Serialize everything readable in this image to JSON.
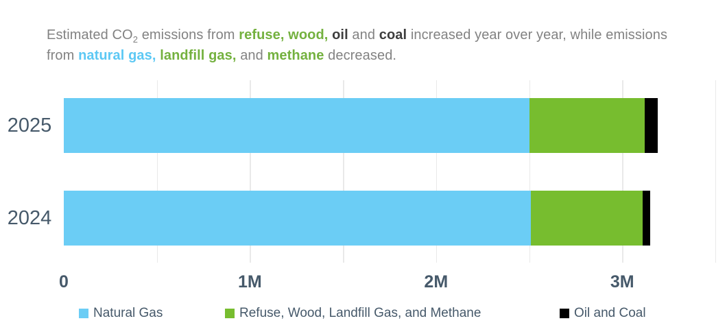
{
  "colors": {
    "blue": "#6bcdf5",
    "green": "#77bd2f",
    "black": "#000000",
    "title_gray": "#828282",
    "title_dark": "#3d3d3d",
    "title_green": "#74b13f",
    "title_blue": "#5cc8f4",
    "axis_text": "#46596a",
    "gridline": "#e9e9e9"
  },
  "title": {
    "lines": [
      [
        {
          "t": "Estimated CO"
        },
        {
          "t": "2",
          "sub": true
        },
        {
          "t": " emissions from "
        },
        {
          "t": "refuse, wood,",
          "c": "green",
          "b": true
        },
        {
          "t": " "
        },
        {
          "t": "oil",
          "c": "dark",
          "b": true
        },
        {
          "t": " and "
        },
        {
          "t": "coal",
          "c": "dark",
          "b": true
        },
        {
          "t": " increased year over year, while emissions"
        }
      ],
      [
        {
          "t": "from "
        },
        {
          "t": "natural gas,",
          "c": "blue",
          "b": true
        },
        {
          "t": " "
        },
        {
          "t": "landfill gas,",
          "c": "green",
          "b": true
        },
        {
          "t": " and "
        },
        {
          "t": "methane",
          "c": "green",
          "b": true
        },
        {
          "t": " decreased."
        }
      ]
    ]
  },
  "chart_data": {
    "type": "bar",
    "orientation": "horizontal",
    "stacked": true,
    "categories": [
      "2025",
      "2024"
    ],
    "series": [
      {
        "name": "Natural Gas",
        "color_key": "blue",
        "values": [
          2.5,
          2.51
        ]
      },
      {
        "name": "Refuse, Wood, Landfill Gas, and Methane",
        "color_key": "green",
        "values": [
          0.62,
          0.6
        ]
      },
      {
        "name": "Oil and Coal",
        "color_key": "black",
        "values": [
          0.07,
          0.04
        ]
      }
    ],
    "totals": [
      3.19,
      3.15
    ],
    "unit": "M",
    "xlim": [
      0,
      3.5
    ],
    "xticks": [
      {
        "v": 0,
        "label": "0"
      },
      {
        "v": 1,
        "label": "1M"
      },
      {
        "v": 2,
        "label": "2M"
      },
      {
        "v": 3,
        "label": "3M"
      }
    ],
    "gridline_step": 0.5,
    "grid": "vertical-only",
    "legend_position": "bottom"
  },
  "legend": {
    "items": [
      {
        "label": "Natural Gas",
        "color_key": "blue"
      },
      {
        "label": "Refuse, Wood, Landfill Gas, and Methane",
        "color_key": "green"
      },
      {
        "label": "Oil and Coal",
        "color_key": "black"
      }
    ]
  }
}
